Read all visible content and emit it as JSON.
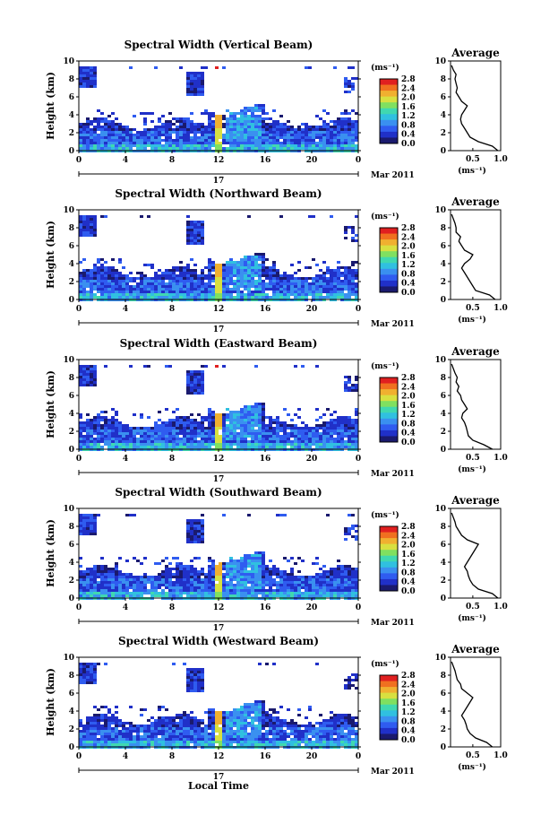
{
  "figure": {
    "x_label": "Local Time",
    "date_label": "Mar 2011",
    "day_label": "17",
    "y_label": "Height (km)",
    "colorbar_unit": "(ms⁻¹)",
    "colorbar_ticks": [
      "0.0",
      "0.4",
      "0.8",
      "1.2",
      "1.6",
      "2.0",
      "2.4",
      "2.8"
    ],
    "avg_title": "Average",
    "avg_unit": "(ms⁻¹)",
    "avg_x_ticks": [
      "0.5",
      "1.0"
    ],
    "time_ticks": [
      "0",
      "4",
      "8",
      "12",
      "16",
      "20",
      "0"
    ],
    "height_ticks": [
      "0",
      "2",
      "4",
      "6",
      "8",
      "10"
    ]
  },
  "colors": {
    "colormap": [
      "#1a1a6e",
      "#2030c8",
      "#2f5cf0",
      "#3a90f0",
      "#30c0e0",
      "#40d8b0",
      "#80e060",
      "#d8e040",
      "#f0b030",
      "#f07020",
      "#e02020"
    ]
  },
  "chart_data": [
    {
      "type": "heatmap",
      "title": "Spectral Width (Vertical Beam)",
      "xlabel": "",
      "ylabel": "Height (km)",
      "xlim": [
        0,
        24
      ],
      "ylim": [
        0,
        10
      ],
      "colorbar_range": [
        0.0,
        2.8
      ],
      "average_profile": {
        "xlim": [
          0.1,
          1.0
        ],
        "heights": [
          0,
          0.5,
          1,
          1.5,
          2,
          2.5,
          3,
          3.5,
          4,
          4.5,
          5,
          5.5,
          6,
          6.5,
          7,
          7.5,
          8,
          8.5,
          9,
          9.5
        ],
        "values": [
          0.95,
          0.85,
          0.6,
          0.45,
          0.4,
          0.35,
          0.3,
          0.28,
          0.3,
          0.35,
          0.4,
          0.3,
          0.25,
          0.2,
          0.22,
          0.2,
          0.18,
          0.2,
          0.15,
          0.12
        ]
      }
    },
    {
      "type": "heatmap",
      "title": "Spectral Width (Northward Beam)",
      "xlabel": "",
      "ylabel": "Height (km)",
      "xlim": [
        0,
        24
      ],
      "ylim": [
        0,
        10
      ],
      "colorbar_range": [
        0.0,
        2.8
      ],
      "average_profile": {
        "xlim": [
          0.1,
          1.0
        ],
        "heights": [
          0,
          0.5,
          1,
          1.5,
          2,
          2.5,
          3,
          3.5,
          4,
          4.5,
          5,
          5.5,
          6,
          6.5,
          7,
          7.5,
          8,
          8.5,
          9,
          9.5
        ],
        "values": [
          0.9,
          0.8,
          0.55,
          0.5,
          0.45,
          0.4,
          0.35,
          0.3,
          0.35,
          0.45,
          0.5,
          0.35,
          0.3,
          0.25,
          0.28,
          0.2,
          0.2,
          0.18,
          0.15,
          0.12
        ]
      }
    },
    {
      "type": "heatmap",
      "title": "Spectral Width (Eastward Beam)",
      "xlabel": "",
      "ylabel": "Height (km)",
      "xlim": [
        0,
        24
      ],
      "ylim": [
        0,
        10
      ],
      "colorbar_range": [
        0.0,
        2.8
      ],
      "average_profile": {
        "xlim": [
          0.1,
          1.0
        ],
        "heights": [
          0,
          0.5,
          1,
          1.5,
          2,
          2.5,
          3,
          3.5,
          4,
          4.5,
          5,
          5.5,
          6,
          6.5,
          7,
          7.5,
          8,
          8.5,
          9,
          9.5
        ],
        "values": [
          0.85,
          0.7,
          0.5,
          0.42,
          0.4,
          0.38,
          0.35,
          0.3,
          0.32,
          0.4,
          0.35,
          0.3,
          0.28,
          0.22,
          0.25,
          0.2,
          0.22,
          0.18,
          0.15,
          0.12
        ]
      }
    },
    {
      "type": "heatmap",
      "title": "Spectral Width (Southward Beam)",
      "xlabel": "",
      "ylabel": "Height (km)",
      "xlim": [
        0,
        24
      ],
      "ylim": [
        0,
        10
      ],
      "colorbar_range": [
        0.0,
        2.8
      ],
      "average_profile": {
        "xlim": [
          0.1,
          1.0
        ],
        "heights": [
          0,
          0.5,
          1,
          1.5,
          2,
          2.5,
          3,
          3.5,
          4,
          4.5,
          5,
          5.5,
          6,
          6.5,
          7,
          7.5,
          8,
          8.5,
          9,
          9.5
        ],
        "values": [
          0.95,
          0.85,
          0.6,
          0.5,
          0.45,
          0.42,
          0.4,
          0.35,
          0.4,
          0.45,
          0.5,
          0.55,
          0.6,
          0.4,
          0.3,
          0.25,
          0.2,
          0.18,
          0.15,
          0.12
        ]
      }
    },
    {
      "type": "heatmap",
      "title": "Spectral Width (Westward Beam)",
      "xlabel": "Local Time",
      "ylabel": "Height (km)",
      "xlim": [
        0,
        24
      ],
      "ylim": [
        0,
        10
      ],
      "colorbar_range": [
        0.0,
        2.8
      ],
      "average_profile": {
        "xlim": [
          0.1,
          1.0
        ],
        "heights": [
          0,
          0.5,
          1,
          1.5,
          2,
          2.5,
          3,
          3.5,
          4,
          4.5,
          5,
          5.5,
          6,
          6.5,
          7,
          7.5,
          8,
          8.5,
          9,
          9.5
        ],
        "values": [
          0.85,
          0.75,
          0.55,
          0.45,
          0.4,
          0.38,
          0.35,
          0.3,
          0.35,
          0.4,
          0.45,
          0.5,
          0.4,
          0.3,
          0.28,
          0.22,
          0.2,
          0.18,
          0.15,
          0.12
        ]
      }
    }
  ]
}
